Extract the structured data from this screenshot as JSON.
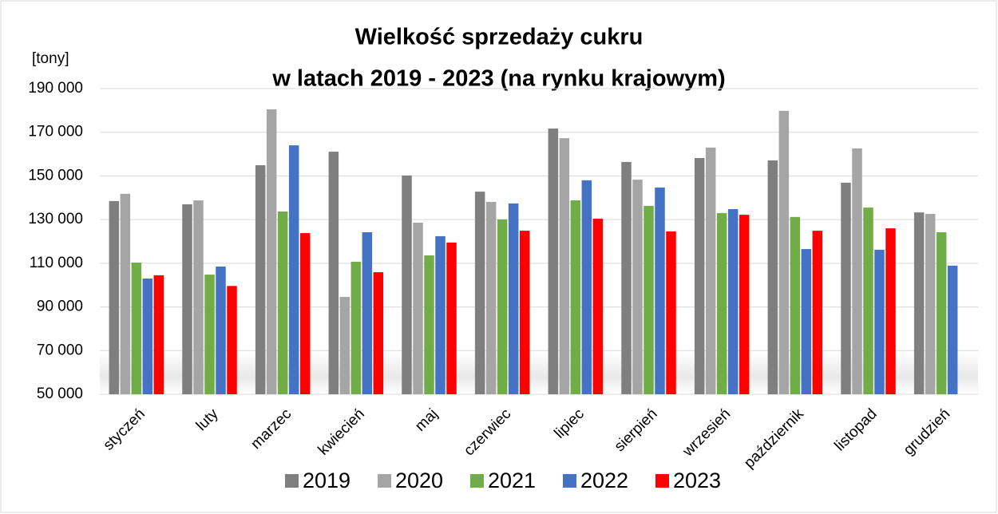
{
  "chart_data": {
    "type": "bar",
    "title": [
      "Wielkość sprzedaży cukru",
      "w latach 2019 - 2023 (na rynku krajowym)"
    ],
    "y_label": "[tony]",
    "categories": [
      "styczeń",
      "luty",
      "marzec",
      "kwiecień",
      "maj",
      "czerwiec",
      "lipiec",
      "sierpień",
      "wrzesień",
      "październik",
      "listopad",
      "grudzień"
    ],
    "series": [
      {
        "name": "2019",
        "color": "#7f7f7f",
        "values": [
          138500,
          137000,
          154900,
          161100,
          150200,
          142800,
          171700,
          156400,
          158200,
          157100,
          146900,
          133300
        ]
      },
      {
        "name": "2020",
        "color": "#a5a5a5",
        "values": [
          141800,
          138800,
          180500,
          94600,
          128600,
          138100,
          167300,
          148300,
          163000,
          179800,
          162600,
          132600
        ]
      },
      {
        "name": "2021",
        "color": "#70ad47",
        "values": [
          110300,
          104800,
          133700,
          110700,
          113600,
          130100,
          138800,
          136300,
          133000,
          131200,
          135500,
          124200
        ]
      },
      {
        "name": "2022",
        "color": "#4472c4",
        "values": [
          103000,
          108500,
          164000,
          124200,
          122400,
          137400,
          148000,
          144700,
          134800,
          116500,
          116200,
          108900
        ]
      },
      {
        "name": "2023",
        "color": "#ff0000",
        "values": [
          104500,
          99600,
          123800,
          105900,
          119500,
          124900,
          130400,
          124600,
          132200,
          124900,
          126000,
          null
        ]
      }
    ],
    "ylim": [
      50000,
      190000
    ],
    "yticks": [
      {
        "value": 50000,
        "label": "50 000"
      },
      {
        "value": 70000,
        "label": "70 000"
      },
      {
        "value": 90000,
        "label": "90 000"
      },
      {
        "value": 110000,
        "label": "110 000"
      },
      {
        "value": 130000,
        "label": "130 000"
      },
      {
        "value": 150000,
        "label": "150 000"
      },
      {
        "value": 170000,
        "label": "170 000"
      },
      {
        "value": 190000,
        "label": "190 000"
      }
    ],
    "grid": true,
    "legend": "bottom"
  }
}
